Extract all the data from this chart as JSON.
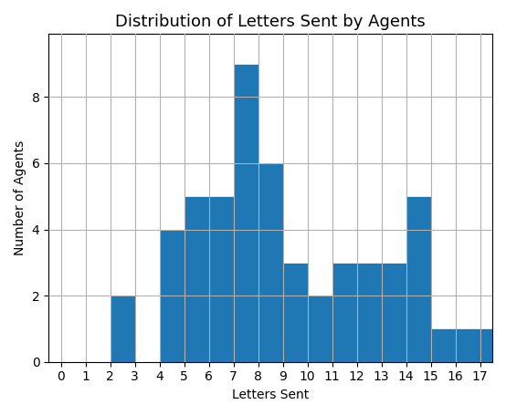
{
  "title": "Distribution of Letters Sent by Agents",
  "xlabel": "Letters Sent",
  "ylabel": "Number of Agents",
  "bar_color": "#1f77b4",
  "xlim": [
    -0.5,
    17.5
  ],
  "ylim": [
    0,
    9.9
  ],
  "xticks": [
    0,
    1,
    2,
    3,
    4,
    5,
    6,
    7,
    8,
    9,
    10,
    11,
    12,
    13,
    14,
    15,
    16,
    17
  ],
  "yticks": [
    0,
    2,
    4,
    6,
    8
  ],
  "bin_edges": [
    0,
    1,
    2,
    3,
    4,
    5,
    6,
    7,
    8,
    9,
    10,
    11,
    12,
    13,
    14,
    15,
    16,
    17,
    18
  ],
  "heights": [
    0,
    0,
    2,
    0,
    4,
    5,
    5,
    9,
    6,
    3,
    2,
    3,
    3,
    3,
    5,
    1,
    1,
    1
  ],
  "bar_width": 1.0,
  "edgecolor": "white",
  "grid_color": "#b0b0b0",
  "grid_linewidth": 0.8,
  "title_fontsize": 13
}
